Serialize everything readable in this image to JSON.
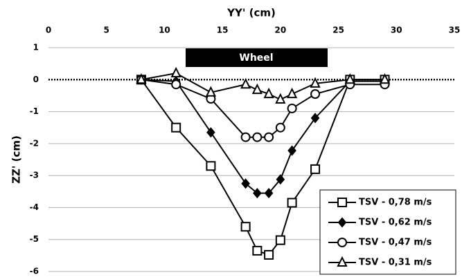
{
  "chart_data": {
    "type": "line",
    "xlabel": "YY' (cm)",
    "ylabel": "ZZ' (cm)",
    "annotation": "Wheel",
    "x": [
      8,
      11,
      14,
      17,
      18,
      19,
      20,
      21,
      23,
      26,
      29
    ],
    "xlim": [
      0,
      35
    ],
    "xticks": [
      0,
      5,
      10,
      15,
      20,
      25,
      30,
      35
    ],
    "ylim": [
      -6,
      1
    ],
    "yticks": [
      -6,
      -5,
      -4,
      -3,
      -2,
      -1,
      0,
      1
    ],
    "grid": true,
    "legend": "lower right",
    "series": [
      {
        "name": "TSV - 0,78 m/s",
        "color": "#000000",
        "marker": "square",
        "values": [
          0,
          -1.5,
          -2.7,
          -4.6,
          -5.35,
          -5.48,
          -5.02,
          -3.85,
          -2.8,
          0,
          0
        ]
      },
      {
        "name": "TSV - 0,62 m/s",
        "color": "#000000",
        "marker": "diamond",
        "values": [
          0,
          -0.05,
          -1.65,
          -3.25,
          -3.55,
          -3.55,
          -3.12,
          -2.22,
          -1.2,
          -0.05,
          -0.05
        ]
      },
      {
        "name": "TSV - 0,47 m/s",
        "color": "#000000",
        "marker": "circle",
        "values": [
          0,
          -0.15,
          -0.6,
          -1.8,
          -1.8,
          -1.8,
          -1.5,
          -0.9,
          -0.45,
          -0.15,
          -0.15
        ]
      },
      {
        "name": "TSV - 0,31 m/s",
        "color": "#000000",
        "marker": "triangle",
        "values": [
          0,
          0.2,
          -0.4,
          -0.15,
          -0.32,
          -0.45,
          -0.62,
          -0.45,
          -0.12,
          0,
          0
        ]
      }
    ]
  }
}
